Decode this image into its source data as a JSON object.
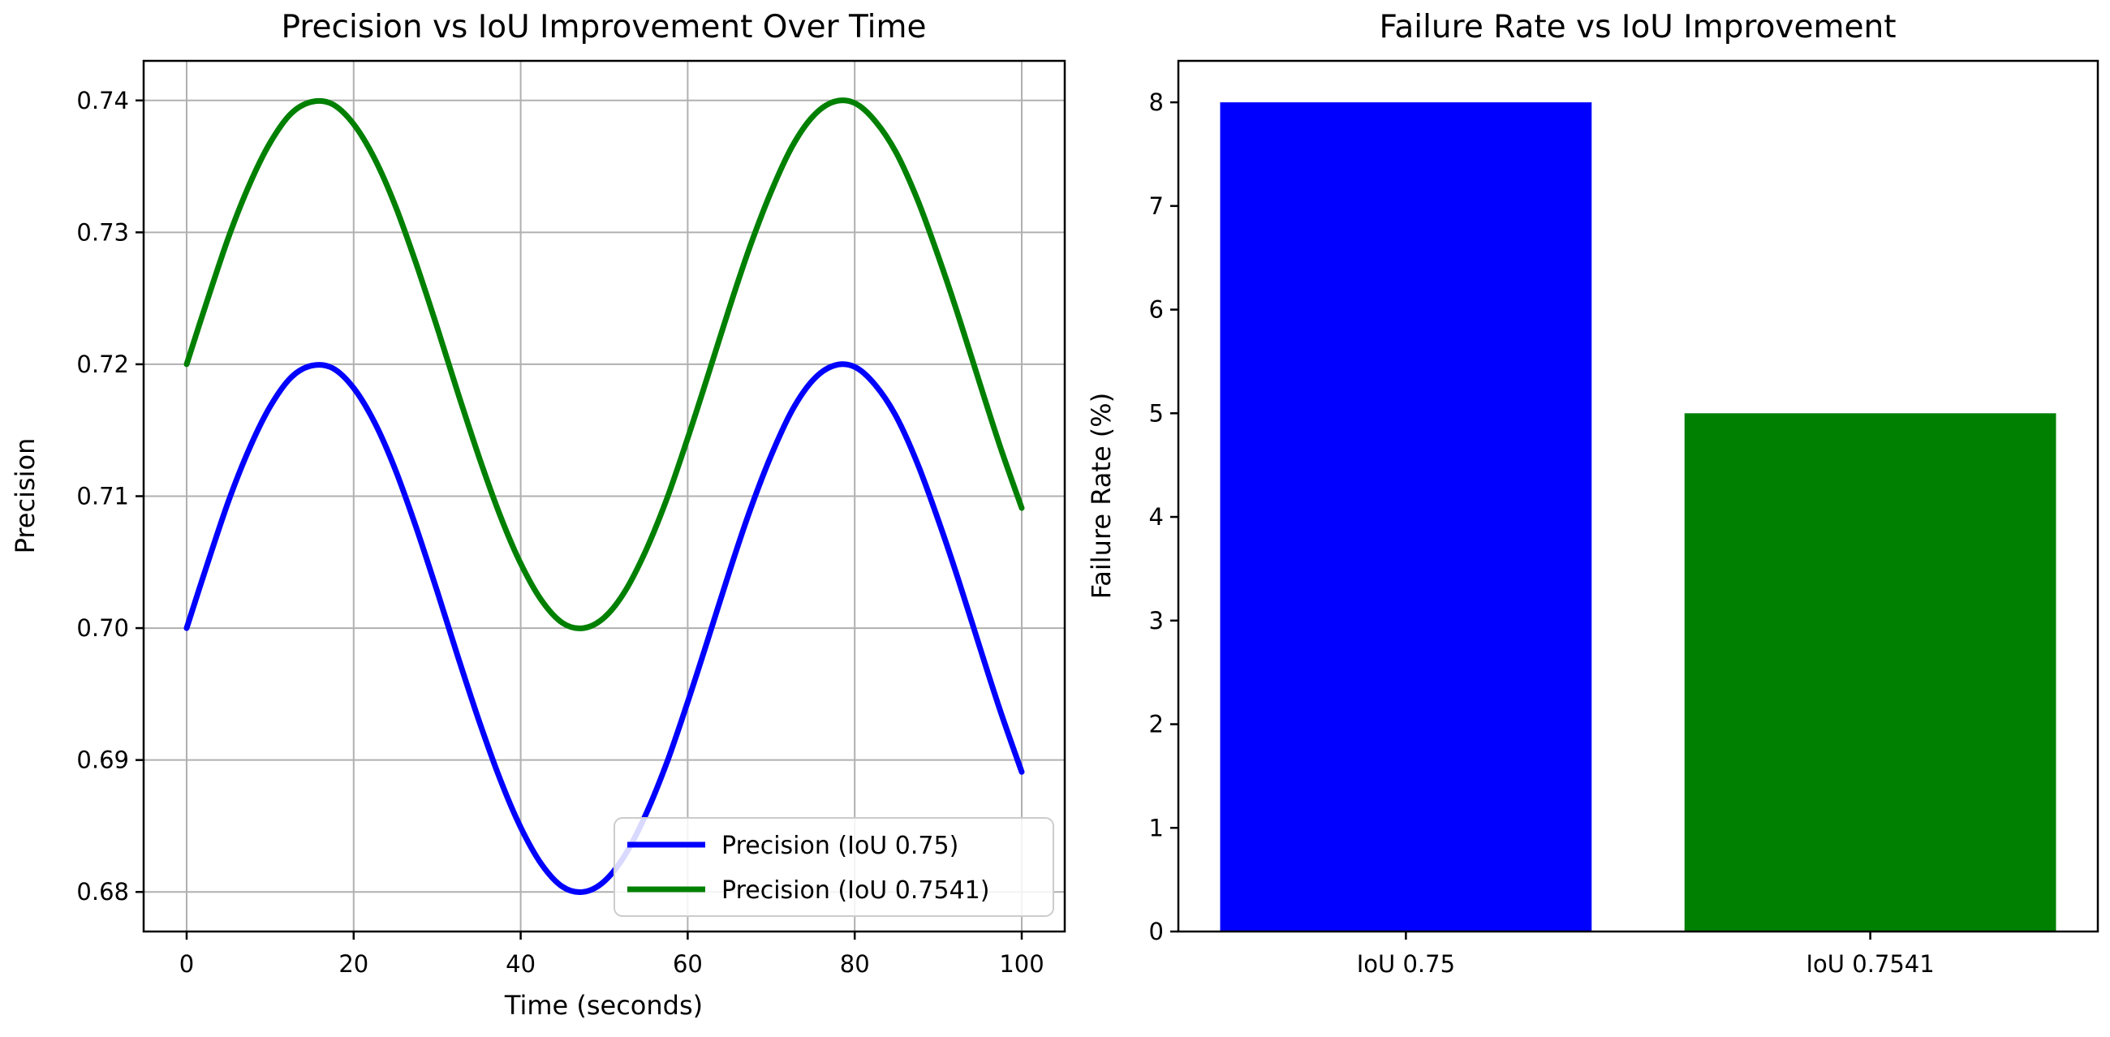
{
  "figure": {
    "background": "#ffffff"
  },
  "colors": {
    "grid": "#b0b0b0",
    "spine": "#000000",
    "text": "#000000",
    "blue_series": "#0000ff",
    "green_series": "#008000",
    "legend_border": "#cccccc",
    "legend_bg": "#ffffff"
  },
  "chart_data": [
    {
      "type": "line",
      "title": "Precision vs IoU Improvement Over Time",
      "xlabel": "Time (seconds)",
      "ylabel": "Precision",
      "xlim": [
        -5.15,
        105.15
      ],
      "ylim": [
        0.677,
        0.743
      ],
      "xticks": [
        0,
        20,
        40,
        60,
        80,
        100
      ],
      "xtick_labels": [
        "0",
        "20",
        "40",
        "60",
        "80",
        "100"
      ],
      "yticks": [
        0.68,
        0.69,
        0.7,
        0.71,
        0.72,
        0.73,
        0.74
      ],
      "ytick_labels": [
        "0.68",
        "0.69",
        "0.70",
        "0.71",
        "0.72",
        "0.73",
        "0.74"
      ],
      "grid": true,
      "legend_position": "lower right",
      "x": [
        0,
        2.5,
        5,
        7.5,
        10,
        12.5,
        15,
        17.5,
        20,
        22.5,
        25,
        27.5,
        30,
        32.5,
        35,
        37.5,
        40,
        42.5,
        45,
        47.5,
        50,
        52.5,
        55,
        57.5,
        60,
        62.5,
        65,
        67.5,
        70,
        72.5,
        75,
        77.5,
        80,
        82.5,
        85,
        87.5,
        90,
        92.5,
        95,
        97.5,
        100
      ],
      "series": [
        {
          "name": "Precision (IoU 0.75)",
          "color": "#0000ff",
          "values": [
            0.7,
            0.7049,
            0.7096,
            0.7136,
            0.7168,
            0.719,
            0.7199,
            0.7197,
            0.7182,
            0.7156,
            0.712,
            0.7076,
            0.7028,
            0.6978,
            0.693,
            0.6886,
            0.6849,
            0.6821,
            0.6804,
            0.68,
            0.6808,
            0.6828,
            0.6859,
            0.6898,
            0.6944,
            0.6993,
            0.7043,
            0.709,
            0.7131,
            0.7165,
            0.7188,
            0.7199,
            0.7198,
            0.7184,
            0.716,
            0.7125,
            0.7082,
            0.7035,
            0.6985,
            0.6936,
            0.6891
          ]
        },
        {
          "name": "Precision (IoU 0.7541)",
          "color": "#008000",
          "values": [
            0.72,
            0.7249,
            0.7296,
            0.7336,
            0.7368,
            0.739,
            0.7399,
            0.7397,
            0.7382,
            0.7356,
            0.732,
            0.7276,
            0.7228,
            0.7178,
            0.713,
            0.7086,
            0.7049,
            0.7021,
            0.7004,
            0.7,
            0.7008,
            0.7028,
            0.7059,
            0.7098,
            0.7144,
            0.7193,
            0.7243,
            0.729,
            0.7331,
            0.7365,
            0.7388,
            0.7399,
            0.7398,
            0.7384,
            0.736,
            0.7325,
            0.7282,
            0.7235,
            0.7185,
            0.7136,
            0.7091
          ]
        }
      ]
    },
    {
      "type": "bar",
      "title": "Failure Rate vs IoU Improvement",
      "xlabel": "",
      "ylabel": "Failure Rate (%)",
      "categories": [
        "IoU 0.75",
        "IoU 0.7541"
      ],
      "values": [
        8,
        5
      ],
      "colors": [
        "#0000ff",
        "#008000"
      ],
      "bar_width": 0.8,
      "xlim": [
        -0.49,
        1.49
      ],
      "ylim": [
        0,
        8.4
      ],
      "yticks": [
        0,
        1,
        2,
        3,
        4,
        5,
        6,
        7,
        8
      ],
      "ytick_labels": [
        "0",
        "1",
        "2",
        "3",
        "4",
        "5",
        "6",
        "7",
        "8"
      ],
      "grid": false
    }
  ]
}
